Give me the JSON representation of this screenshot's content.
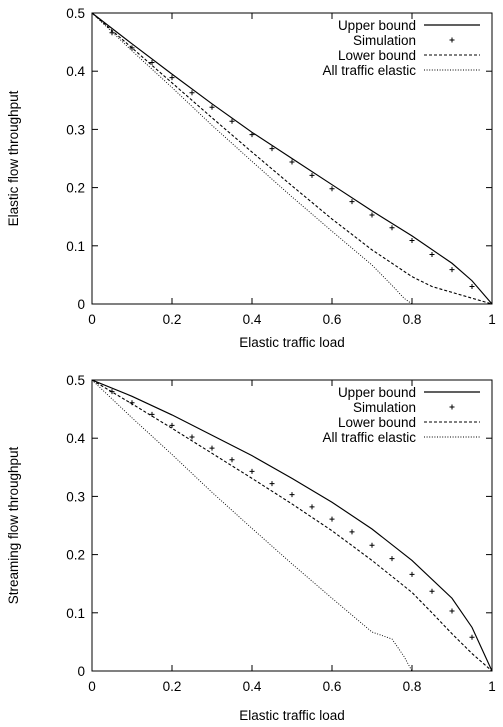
{
  "chart_data": [
    {
      "type": "line",
      "title": "",
      "xlabel": "Elastic traffic load",
      "ylabel": "Elastic flow throughput",
      "xlim": [
        0,
        1
      ],
      "ylim": [
        0,
        0.5
      ],
      "xticks": [
        0,
        0.2,
        0.4,
        0.6,
        0.8,
        1
      ],
      "yticks": [
        0,
        0.1,
        0.2,
        0.3,
        0.4,
        0.5
      ],
      "xtick_labels": [
        "0",
        "0.2",
        "0.4",
        "0.6",
        "0.8",
        "1"
      ],
      "ytick_labels": [
        "0",
        "0.1",
        "0.2",
        "0.3",
        "0.4",
        "0.5"
      ],
      "grid": false,
      "legend": "top-right",
      "series": [
        {
          "name": "Upper bound",
          "style": "solid",
          "x": [
            0,
            0.1,
            0.2,
            0.3,
            0.4,
            0.5,
            0.6,
            0.7,
            0.8,
            0.9,
            0.95,
            1.0
          ],
          "y": [
            0.5,
            0.447,
            0.395,
            0.344,
            0.295,
            0.25,
            0.205,
            0.16,
            0.117,
            0.07,
            0.04,
            0.0
          ]
        },
        {
          "name": "Simulation",
          "style": "points",
          "x": [
            0.05,
            0.1,
            0.15,
            0.2,
            0.25,
            0.3,
            0.35,
            0.4,
            0.45,
            0.5,
            0.55,
            0.6,
            0.65,
            0.7,
            0.75,
            0.8,
            0.85,
            0.9,
            0.95
          ],
          "y": [
            0.466,
            0.44,
            0.415,
            0.389,
            0.363,
            0.338,
            0.314,
            0.291,
            0.267,
            0.244,
            0.221,
            0.198,
            0.176,
            0.153,
            0.131,
            0.109,
            0.085,
            0.059,
            0.03
          ]
        },
        {
          "name": "Lower bound",
          "style": "dashed",
          "x": [
            0,
            0.1,
            0.2,
            0.3,
            0.4,
            0.5,
            0.6,
            0.7,
            0.8,
            0.85,
            0.9,
            0.95,
            1.0
          ],
          "y": [
            0.5,
            0.44,
            0.38,
            0.32,
            0.261,
            0.203,
            0.146,
            0.093,
            0.047,
            0.03,
            0.02,
            0.01,
            0.0
          ]
        },
        {
          "name": "All traffic elastic",
          "style": "dotted",
          "x": [
            0,
            0.1,
            0.2,
            0.3,
            0.4,
            0.5,
            0.6,
            0.7,
            0.75,
            0.78,
            0.8
          ],
          "y": [
            0.5,
            0.435,
            0.372,
            0.307,
            0.245,
            0.184,
            0.125,
            0.067,
            0.032,
            0.01,
            0.0
          ]
        }
      ]
    },
    {
      "type": "line",
      "title": "",
      "xlabel": "Elastic traffic load",
      "ylabel": "Streaming flow throughput",
      "xlim": [
        0,
        1
      ],
      "ylim": [
        0,
        0.5
      ],
      "xticks": [
        0,
        0.2,
        0.4,
        0.6,
        0.8,
        1
      ],
      "yticks": [
        0,
        0.1,
        0.2,
        0.3,
        0.4,
        0.5
      ],
      "xtick_labels": [
        "0",
        "0.2",
        "0.4",
        "0.6",
        "0.8",
        "1"
      ],
      "ytick_labels": [
        "0",
        "0.1",
        "0.2",
        "0.3",
        "0.4",
        "0.5"
      ],
      "grid": false,
      "legend": "top-right",
      "series": [
        {
          "name": "Upper bound",
          "style": "solid",
          "x": [
            0,
            0.1,
            0.2,
            0.3,
            0.4,
            0.5,
            0.6,
            0.7,
            0.8,
            0.9,
            0.95,
            1.0
          ],
          "y": [
            0.5,
            0.472,
            0.44,
            0.405,
            0.37,
            0.331,
            0.29,
            0.244,
            0.19,
            0.125,
            0.075,
            0.0
          ]
        },
        {
          "name": "Simulation",
          "style": "points",
          "x": [
            0.05,
            0.1,
            0.15,
            0.2,
            0.25,
            0.3,
            0.35,
            0.4,
            0.45,
            0.5,
            0.55,
            0.6,
            0.65,
            0.7,
            0.75,
            0.8,
            0.85,
            0.9,
            0.95
          ],
          "y": [
            0.48,
            0.461,
            0.441,
            0.422,
            0.402,
            0.383,
            0.363,
            0.343,
            0.322,
            0.303,
            0.282,
            0.261,
            0.239,
            0.216,
            0.193,
            0.166,
            0.137,
            0.103,
            0.058
          ]
        },
        {
          "name": "Lower bound",
          "style": "dashed",
          "x": [
            0,
            0.1,
            0.2,
            0.3,
            0.4,
            0.5,
            0.6,
            0.7,
            0.8,
            0.85,
            0.9,
            0.95,
            1.0
          ],
          "y": [
            0.5,
            0.459,
            0.417,
            0.374,
            0.331,
            0.287,
            0.241,
            0.19,
            0.135,
            0.1,
            0.064,
            0.03,
            0.0
          ]
        },
        {
          "name": "All traffic elastic",
          "style": "dotted",
          "x": [
            0,
            0.1,
            0.2,
            0.3,
            0.4,
            0.5,
            0.6,
            0.7,
            0.75,
            0.78,
            0.8
          ],
          "y": [
            0.5,
            0.435,
            0.372,
            0.307,
            0.245,
            0.184,
            0.125,
            0.067,
            0.055,
            0.025,
            0.0
          ]
        }
      ]
    }
  ]
}
